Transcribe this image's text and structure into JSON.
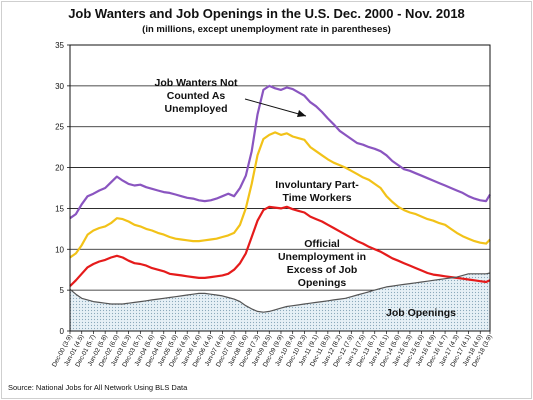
{
  "chart_data": {
    "type": "line",
    "title": "Job Wanters and Job Openings in the U.S. Dec. 2000 -  Nov. 2018",
    "subtitle": "(in millions, except unemployment rate in parentheses)",
    "source": "Source: National Jobs for All Network Using BLS Data",
    "ylim": [
      0,
      35
    ],
    "yticks": [
      "0",
      "5",
      "10",
      "15",
      "20",
      "25",
      "30",
      "35"
    ],
    "grid": true,
    "x_start": "Dec-00",
    "x_end": "Nov-18",
    "xtick_labels": [
      "Dec-00 (3.9)",
      "Jun-01 (4.5)",
      "Dec-01 (5.7)",
      "Jun-02 (5.8)",
      "Dec-02 (6.0)",
      "Jun-03 (6.3)",
      "Dec-03 (5.7)",
      "Jun-04 (5.6)",
      "Dec-04 (5.4)",
      "Jun-05 (5.0)",
      "Dec-05 (4.9)",
      "Jun-06 (4.6)",
      "Dec-06 (4.4)",
      "Jun-07 (4.6)",
      "Dec-07 (5.0)",
      "Jun-08 (5.6)",
      "Dec-08 (7.3)",
      "Jun-09 (9.5)",
      "Dec-09 (9.9)",
      "Jun-10 (9.4)",
      "Dec-10 (9.3)",
      "Jun-11 (9.1)",
      "Dec-11 (8.5)",
      "Jun-12 (8.2)",
      "Dec-12 (7.9)",
      "Jun-13 (7.5)",
      "Dec-13 (6.7)",
      "Jun-14 (6.1)",
      "Dec-14 (5.6)",
      "Jun-15 (5.3)",
      "Dec-15 (5.0)",
      "Jun-16 (4.9)",
      "Dec-16 (4.7)",
      "Jun-17 (4.3)",
      "Dec-17 (4.1)",
      "Jun-18 (4.0)",
      "Dec-18 (3.9)"
    ],
    "series": [
      {
        "key": "wanters",
        "label": "Job Wanters Not Counted As Unemployed",
        "color": "#8a55c0",
        "x": [
          0,
          3,
          6,
          9,
          12,
          15,
          18,
          21,
          24,
          27,
          30,
          33,
          36,
          39,
          42,
          45,
          48,
          51,
          54,
          57,
          60,
          63,
          66,
          69,
          72,
          75,
          78,
          81,
          84,
          87,
          90,
          93,
          96,
          99,
          102,
          105,
          108,
          111,
          114,
          117,
          120,
          123,
          126,
          129,
          132,
          135,
          138,
          141,
          144,
          147,
          150,
          153,
          156,
          159,
          162,
          165,
          168,
          171,
          174,
          177,
          180,
          183,
          186,
          189,
          192,
          195,
          198,
          201,
          204,
          207,
          210,
          213,
          215
        ],
        "y": [
          13.8,
          14.3,
          15.5,
          16.5,
          16.8,
          17.2,
          17.5,
          18.2,
          18.9,
          18.4,
          18.0,
          17.8,
          17.9,
          17.6,
          17.4,
          17.2,
          17.0,
          16.9,
          16.7,
          16.5,
          16.3,
          16.2,
          16.0,
          15.9,
          16.0,
          16.2,
          16.5,
          16.8,
          16.5,
          17.5,
          19.0,
          22.0,
          26.5,
          29.5,
          30.0,
          29.7,
          29.5,
          29.8,
          29.6,
          29.2,
          28.8,
          28.0,
          27.5,
          26.8,
          26.0,
          25.3,
          24.5,
          24.0,
          23.5,
          23.0,
          22.8,
          22.5,
          22.3,
          22.0,
          21.5,
          20.8,
          20.3,
          19.8,
          19.6,
          19.3,
          19.0,
          18.7,
          18.4,
          18.1,
          17.8,
          17.5,
          17.2,
          16.9,
          16.5,
          16.2,
          16.0,
          15.9,
          16.7
        ]
      },
      {
        "key": "ptime",
        "label": "Involuntary Part-Time Workers",
        "color": "#f2c218",
        "x": [
          0,
          3,
          6,
          9,
          12,
          15,
          18,
          21,
          24,
          27,
          30,
          33,
          36,
          39,
          42,
          45,
          48,
          51,
          54,
          57,
          60,
          63,
          66,
          69,
          72,
          75,
          78,
          81,
          84,
          87,
          90,
          93,
          96,
          99,
          102,
          105,
          108,
          111,
          114,
          117,
          120,
          123,
          126,
          129,
          132,
          135,
          138,
          141,
          144,
          147,
          150,
          153,
          156,
          159,
          162,
          165,
          168,
          171,
          174,
          177,
          180,
          183,
          186,
          189,
          192,
          195,
          198,
          201,
          204,
          207,
          210,
          213,
          215
        ],
        "y": [
          9.0,
          9.5,
          10.5,
          11.8,
          12.3,
          12.6,
          12.8,
          13.2,
          13.8,
          13.7,
          13.4,
          13.0,
          12.8,
          12.5,
          12.3,
          12.0,
          11.8,
          11.5,
          11.3,
          11.2,
          11.1,
          11.0,
          11.0,
          11.1,
          11.2,
          11.3,
          11.5,
          11.7,
          12.0,
          13.0,
          15.0,
          18.0,
          21.5,
          23.5,
          24.0,
          24.3,
          24.0,
          24.2,
          23.8,
          23.6,
          23.4,
          22.5,
          22.0,
          21.5,
          21.0,
          20.6,
          20.3,
          20.0,
          19.6,
          19.2,
          18.8,
          18.5,
          18.0,
          17.5,
          16.5,
          15.8,
          15.2,
          14.8,
          14.5,
          14.3,
          14.0,
          13.7,
          13.5,
          13.2,
          13.0,
          12.5,
          12.0,
          11.6,
          11.3,
          11.0,
          10.8,
          10.7,
          11.2
        ]
      },
      {
        "key": "official",
        "label": "Official Unemployment in Excess of Job Openings",
        "color": "#e51b1b",
        "x": [
          0,
          3,
          6,
          9,
          12,
          15,
          18,
          21,
          24,
          27,
          30,
          33,
          36,
          39,
          42,
          45,
          48,
          51,
          54,
          57,
          60,
          63,
          66,
          69,
          72,
          75,
          78,
          81,
          84,
          87,
          90,
          93,
          96,
          99,
          102,
          105,
          108,
          111,
          114,
          117,
          120,
          123,
          126,
          129,
          132,
          135,
          138,
          141,
          144,
          147,
          150,
          153,
          156,
          159,
          162,
          165,
          168,
          171,
          174,
          177,
          180,
          183,
          186,
          189,
          192,
          195,
          198,
          201,
          204,
          207,
          210,
          213,
          215
        ],
        "y": [
          5.5,
          6.2,
          7.0,
          7.8,
          8.2,
          8.5,
          8.7,
          9.0,
          9.2,
          9.0,
          8.6,
          8.3,
          8.2,
          8.0,
          7.7,
          7.5,
          7.3,
          7.0,
          6.9,
          6.8,
          6.7,
          6.6,
          6.5,
          6.5,
          6.6,
          6.7,
          6.8,
          7.0,
          7.5,
          8.3,
          9.5,
          11.5,
          13.5,
          14.8,
          15.2,
          15.1,
          15.0,
          15.2,
          14.9,
          14.7,
          14.5,
          14.0,
          13.7,
          13.4,
          13.0,
          12.6,
          12.2,
          11.8,
          11.4,
          11.0,
          10.7,
          10.3,
          10.0,
          9.7,
          9.3,
          8.9,
          8.6,
          8.3,
          8.0,
          7.7,
          7.4,
          7.1,
          6.9,
          6.8,
          6.7,
          6.6,
          6.5,
          6.4,
          6.3,
          6.2,
          6.1,
          6.0,
          6.2
        ]
      },
      {
        "key": "openings",
        "label": "Job Openings",
        "color": "#555555",
        "x": [
          0,
          3,
          6,
          9,
          12,
          15,
          18,
          21,
          24,
          27,
          30,
          33,
          36,
          39,
          42,
          45,
          48,
          51,
          54,
          57,
          60,
          63,
          66,
          69,
          72,
          75,
          78,
          81,
          84,
          87,
          90,
          93,
          96,
          99,
          102,
          105,
          108,
          111,
          114,
          117,
          120,
          123,
          126,
          129,
          132,
          135,
          138,
          141,
          144,
          147,
          150,
          153,
          156,
          159,
          162,
          165,
          168,
          171,
          174,
          177,
          180,
          183,
          186,
          189,
          192,
          195,
          198,
          201,
          204,
          207,
          210,
          213,
          215
        ],
        "y": [
          5.1,
          4.5,
          4.0,
          3.8,
          3.6,
          3.5,
          3.4,
          3.3,
          3.3,
          3.3,
          3.4,
          3.5,
          3.6,
          3.7,
          3.8,
          3.9,
          4.0,
          4.1,
          4.2,
          4.3,
          4.4,
          4.5,
          4.6,
          4.6,
          4.5,
          4.4,
          4.3,
          4.1,
          3.9,
          3.6,
          3.1,
          2.7,
          2.4,
          2.3,
          2.4,
          2.6,
          2.8,
          3.0,
          3.1,
          3.2,
          3.3,
          3.4,
          3.5,
          3.6,
          3.7,
          3.8,
          3.9,
          4.0,
          4.2,
          4.4,
          4.6,
          4.8,
          5.0,
          5.2,
          5.4,
          5.5,
          5.6,
          5.7,
          5.8,
          5.9,
          6.0,
          6.1,
          6.2,
          6.3,
          6.4,
          6.5,
          6.6,
          6.8,
          7.0,
          7.0,
          7.0,
          7.0,
          7.1
        ]
      }
    ],
    "annotations": {
      "wanters": [
        "Job Wanters Not",
        "Counted As",
        "Unemployed"
      ],
      "ptime": [
        "Involuntary Part-",
        "Time Workers"
      ],
      "official": [
        "Official",
        "Unemployment in",
        "Excess of Job",
        "Openings"
      ],
      "openings": [
        "Job Openings"
      ]
    }
  }
}
